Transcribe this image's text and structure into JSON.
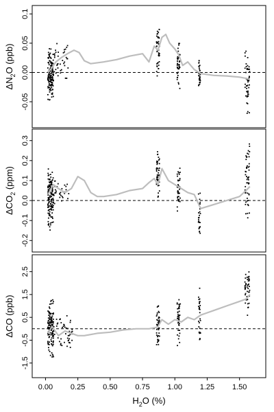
{
  "chart_data": [
    {
      "type": "scatter",
      "ylabel_main": "ΔN",
      "ylabel_sub": "2",
      "ylabel_rest": "O (ppb)",
      "xlim": [
        -0.05,
        1.65
      ],
      "ylim": [
        -0.085,
        0.105
      ],
      "yticks": [
        -0.05,
        0.0,
        0.05,
        0.1
      ],
      "ytick_labels": [
        "-0.05",
        "0.00",
        "0.05",
        "0.1"
      ],
      "reference_line": 0,
      "clusters": [
        {
          "x": 0.04,
          "spread": 0.022,
          "ymin": -0.05,
          "ymax": 0.04,
          "n": 130
        },
        {
          "x": 0.1,
          "spread": 0.08,
          "ymin": -0.01,
          "ymax": 0.05,
          "n": 45
        },
        {
          "x": 0.87,
          "spread": 0.012,
          "ymin": -0.02,
          "ymax": 0.098,
          "n": 45
        },
        {
          "x": 1.03,
          "spread": 0.012,
          "ymin": -0.03,
          "ymax": 0.05,
          "n": 40
        },
        {
          "x": 1.19,
          "spread": 0.008,
          "ymin": -0.04,
          "ymax": 0.022,
          "n": 30
        },
        {
          "x": 1.56,
          "spread": 0.018,
          "ymin": -0.072,
          "ymax": 0.04,
          "n": 50
        }
      ],
      "smooth_line": {
        "x": [
          0.02,
          0.05,
          0.08,
          0.12,
          0.17,
          0.22,
          0.26,
          0.3,
          0.35,
          0.45,
          0.55,
          0.65,
          0.75,
          0.8,
          0.84,
          0.87,
          0.9,
          0.93,
          0.96,
          1.0,
          1.03,
          1.06,
          1.1,
          1.15,
          1.2,
          1.3,
          1.4,
          1.5,
          1.55,
          1.58
        ],
        "y": [
          0.0,
          0.008,
          0.018,
          0.025,
          0.032,
          0.038,
          0.034,
          0.02,
          0.015,
          0.018,
          0.022,
          0.028,
          0.032,
          0.018,
          0.045,
          0.038,
          0.06,
          0.065,
          0.05,
          0.04,
          0.03,
          0.012,
          0.018,
          0.005,
          -0.002,
          -0.005,
          -0.006,
          -0.008,
          -0.01,
          -0.012
        ]
      }
    },
    {
      "type": "scatter",
      "ylabel_main": "ΔCO",
      "ylabel_sub": "2",
      "ylabel_rest": " (ppm)",
      "xlim": [
        -0.05,
        1.65
      ],
      "ylim": [
        -0.23,
        0.33
      ],
      "yticks": [
        -0.2,
        -0.1,
        0.0,
        0.1,
        0.2,
        0.3
      ],
      "ytick_labels": [
        "-0.2",
        "-0.1",
        "0.0",
        "0.1",
        "0.2",
        "0.3"
      ],
      "reference_line": 0,
      "clusters": [
        {
          "x": 0.04,
          "spread": 0.022,
          "ymin": -0.15,
          "ymax": 0.16,
          "n": 130
        },
        {
          "x": 0.1,
          "spread": 0.08,
          "ymin": -0.02,
          "ymax": 0.1,
          "n": 40
        },
        {
          "x": 0.87,
          "spread": 0.012,
          "ymin": 0.0,
          "ymax": 0.25,
          "n": 45
        },
        {
          "x": 1.03,
          "spread": 0.012,
          "ymin": -0.07,
          "ymax": 0.18,
          "n": 40
        },
        {
          "x": 1.19,
          "spread": 0.008,
          "ymin": -0.2,
          "ymax": 0.05,
          "n": 30
        },
        {
          "x": 1.56,
          "spread": 0.018,
          "ymin": -0.1,
          "ymax": 0.3,
          "n": 50
        }
      ],
      "smooth_line": {
        "x": [
          0.02,
          0.06,
          0.1,
          0.15,
          0.2,
          0.25,
          0.3,
          0.35,
          0.4,
          0.45,
          0.55,
          0.65,
          0.75,
          0.8,
          0.84,
          0.87,
          0.9,
          0.95,
          1.0,
          1.05,
          1.1,
          1.15,
          1.2,
          1.3,
          1.4,
          1.5,
          1.55,
          1.58
        ],
        "y": [
          0.03,
          0.08,
          0.06,
          0.04,
          0.06,
          0.12,
          0.1,
          0.04,
          0.02,
          0.02,
          0.03,
          0.05,
          0.06,
          0.09,
          0.11,
          0.08,
          0.16,
          0.1,
          0.08,
          0.06,
          0.04,
          0.03,
          -0.04,
          -0.02,
          0.0,
          0.02,
          0.05,
          0.07
        ]
      }
    },
    {
      "type": "scatter",
      "ylabel_main": "ΔCO (ppb)",
      "xlabel_main": "H",
      "xlabel_sub": "2",
      "xlabel_rest": "O (%)",
      "xlim": [
        -0.05,
        1.65
      ],
      "ylim": [
        -1.9,
        3.0
      ],
      "yticks": [
        -1.5,
        -0.5,
        0.5,
        1.5,
        2.5
      ],
      "ytick_labels": [
        "-1.5",
        "-0.5",
        "0.5",
        "1.5",
        "2.5"
      ],
      "xticks": [
        0.0,
        0.25,
        0.5,
        0.75,
        1.0,
        1.25,
        1.5
      ],
      "xtick_labels": [
        "0.00",
        "0.25",
        "0.50",
        "0.75",
        "1.00",
        "1.25",
        "1.50"
      ],
      "reference_line": 0,
      "clusters": [
        {
          "x": 0.04,
          "spread": 0.022,
          "ymin": -1.3,
          "ymax": 1.3,
          "n": 130
        },
        {
          "x": 0.12,
          "spread": 0.09,
          "ymin": -1.0,
          "ymax": 0.6,
          "n": 50
        },
        {
          "x": 0.87,
          "spread": 0.012,
          "ymin": -1.0,
          "ymax": 1.2,
          "n": 45
        },
        {
          "x": 1.03,
          "spread": 0.012,
          "ymin": -0.8,
          "ymax": 1.6,
          "n": 40
        },
        {
          "x": 1.19,
          "spread": 0.008,
          "ymin": -0.6,
          "ymax": 1.8,
          "n": 30
        },
        {
          "x": 1.56,
          "spread": 0.018,
          "ymin": 0.5,
          "ymax": 2.7,
          "n": 50
        }
      ],
      "smooth_line": {
        "x": [
          0.02,
          0.05,
          0.1,
          0.15,
          0.2,
          0.25,
          0.3,
          0.4,
          0.5,
          0.6,
          0.7,
          0.8,
          0.85,
          0.87,
          0.9,
          0.95,
          1.0,
          1.05,
          1.1,
          1.15,
          1.2,
          1.25,
          1.3,
          1.4,
          1.5,
          1.55,
          1.58
        ],
        "y": [
          -0.2,
          0.1,
          -0.3,
          -0.1,
          -0.2,
          -0.3,
          -0.3,
          -0.2,
          -0.15,
          -0.05,
          0.0,
          0.0,
          0.05,
          0.1,
          0.4,
          0.2,
          0.4,
          0.3,
          0.5,
          0.4,
          0.6,
          0.7,
          0.8,
          1.0,
          1.2,
          1.3,
          1.5
        ]
      }
    }
  ]
}
